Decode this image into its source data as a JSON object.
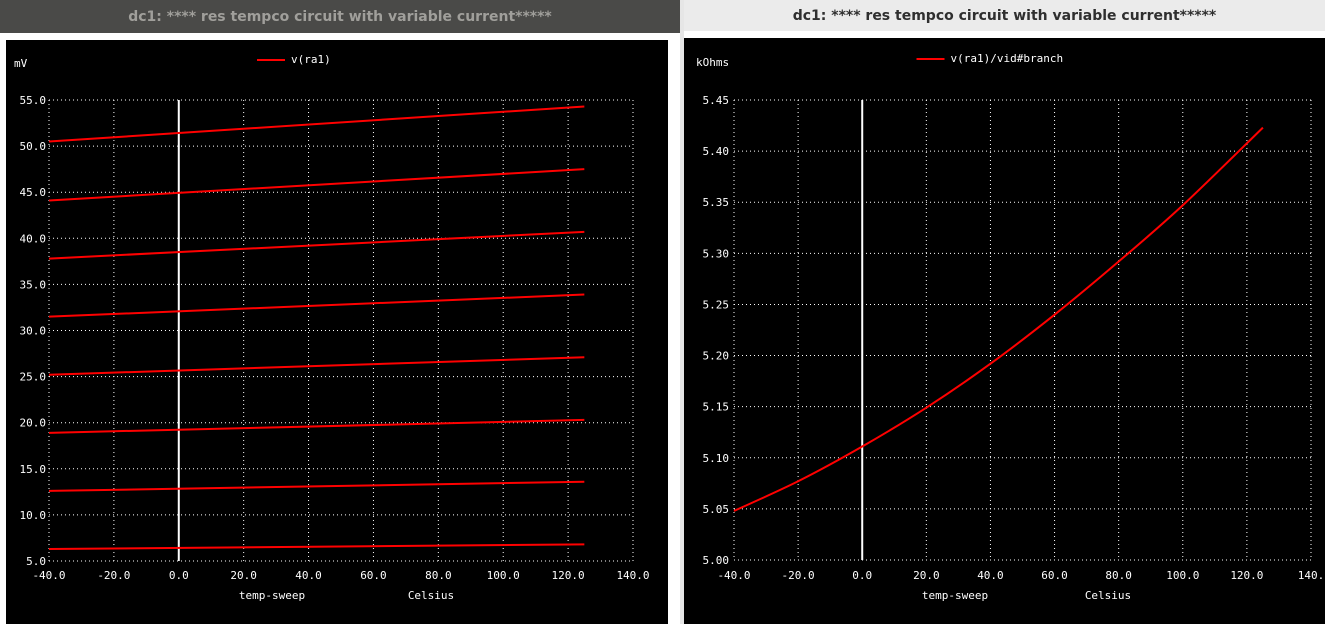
{
  "windows": [
    {
      "title": "dc1: **** res tempco circuit with variable current*****",
      "chart_data": {
        "type": "line",
        "ylabel": "mV",
        "xlabel": "temp-sweep",
        "xunit": "Celsius",
        "legend": "v(ra1)",
        "legend_position": "top-center",
        "grid": true,
        "xlim": [
          -40,
          140
        ],
        "ylim": [
          5,
          55
        ],
        "xticks": [
          "-40.0",
          "-20.0",
          "0.0",
          "20.0",
          "40.0",
          "60.0",
          "80.0",
          "100.0",
          "120.0",
          "140.0"
        ],
        "yticks": [
          "5.0",
          "10.0",
          "15.0",
          "20.0",
          "25.0",
          "30.0",
          "35.0",
          "40.0",
          "45.0",
          "50.0",
          "55.0"
        ],
        "x": [
          -40,
          125
        ],
        "series": [
          {
            "values": [
              6.3,
              6.8
            ]
          },
          {
            "values": [
              12.6,
              13.6
            ]
          },
          {
            "values": [
              18.9,
              20.3
            ]
          },
          {
            "values": [
              25.2,
              27.1
            ]
          },
          {
            "values": [
              31.5,
              33.9
            ]
          },
          {
            "values": [
              37.8,
              40.7
            ]
          },
          {
            "values": [
              44.1,
              47.5
            ]
          },
          {
            "values": [
              50.5,
              54.3
            ]
          }
        ],
        "vline_x": 0,
        "colors": {
          "line": "#ff0000",
          "grid": "#ffffff",
          "background": "#000000",
          "text": "#ffffff"
        }
      }
    },
    {
      "title": "dc1: **** res tempco circuit with variable current*****",
      "chart_data": {
        "type": "line",
        "ylabel": "kOhms",
        "xlabel": "temp-sweep",
        "xunit": "Celsius",
        "legend": "v(ra1)/vid#branch",
        "legend_position": "top-center",
        "grid": true,
        "xlim": [
          -40,
          140
        ],
        "ylim": [
          5.0,
          5.45
        ],
        "xticks": [
          "-40.0",
          "-20.0",
          "0.0",
          "20.0",
          "40.0",
          "60.0",
          "80.0",
          "100.0",
          "120.0",
          "140."
        ],
        "yticks": [
          "5.00",
          "5.05",
          "5.10",
          "5.15",
          "5.20",
          "5.25",
          "5.30",
          "5.35",
          "5.40",
          "5.45"
        ],
        "x": [
          -40,
          -20,
          0,
          20,
          40,
          60,
          80,
          100,
          125
        ],
        "series": [
          {
            "values": [
              5.048,
              5.077,
              5.111,
              5.149,
              5.192,
              5.24,
              5.292,
              5.347,
              5.423
            ]
          }
        ],
        "vline_x": 0,
        "colors": {
          "line": "#ff0000",
          "grid": "#ffffff",
          "background": "#000000",
          "text": "#ffffff"
        }
      }
    }
  ]
}
